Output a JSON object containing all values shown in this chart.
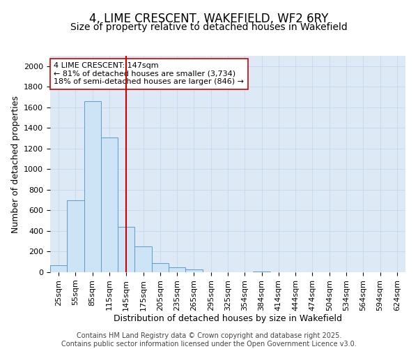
{
  "title": "4, LIME CRESCENT, WAKEFIELD, WF2 6RY",
  "subtitle": "Size of property relative to detached houses in Wakefield",
  "xlabel": "Distribution of detached houses by size in Wakefield",
  "ylabel": "Number of detached properties",
  "categories": [
    "25sqm",
    "55sqm",
    "85sqm",
    "115sqm",
    "145sqm",
    "175sqm",
    "205sqm",
    "235sqm",
    "265sqm",
    "295sqm",
    "325sqm",
    "354sqm",
    "384sqm",
    "414sqm",
    "444sqm",
    "474sqm",
    "504sqm",
    "534sqm",
    "564sqm",
    "594sqm",
    "624sqm"
  ],
  "values": [
    65,
    700,
    1660,
    1305,
    440,
    250,
    90,
    50,
    25,
    0,
    0,
    0,
    10,
    0,
    0,
    0,
    0,
    0,
    0,
    0,
    0
  ],
  "bar_facecolor": "#cce4f5",
  "bar_edgecolor": "#5b9bd5",
  "vline_x": 4,
  "vline_color": "#cc0000",
  "annotation_text": "4 LIME CRESCENT: 147sqm\n← 81% of detached houses are smaller (3,734)\n18% of semi-detached houses are larger (846) →",
  "annotation_box_edgecolor": "#cc0000",
  "annotation_box_facecolor": "white",
  "ylim": [
    0,
    2100
  ],
  "yticks": [
    0,
    200,
    400,
    600,
    800,
    1000,
    1200,
    1400,
    1600,
    1800,
    2000
  ],
  "grid_color": "#c5d8ec",
  "background_color": "#ddeaf6",
  "footer_line1": "Contains HM Land Registry data © Crown copyright and database right 2025.",
  "footer_line2": "Contains public sector information licensed under the Open Government Licence v3.0.",
  "title_fontsize": 12,
  "subtitle_fontsize": 10,
  "label_fontsize": 9,
  "tick_fontsize": 8,
  "footer_fontsize": 7,
  "annotation_fontsize": 8
}
